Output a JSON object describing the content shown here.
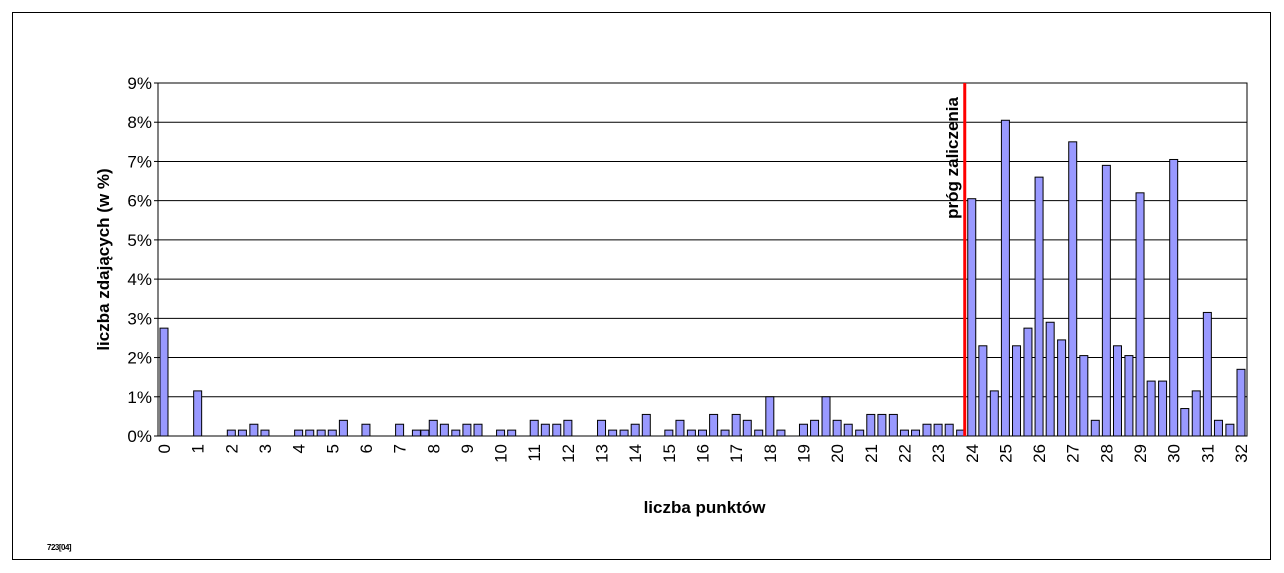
{
  "footnote": "723[04]",
  "chart_data": {
    "type": "bar",
    "xlabel": "liczba punktów",
    "ylabel": "liczba zdających (w %)",
    "ylim": [
      0,
      9
    ],
    "yticks": [
      "0%",
      "1%",
      "2%",
      "3%",
      "4%",
      "5%",
      "6%",
      "7%",
      "8%",
      "9%"
    ],
    "xlim": [
      0,
      32
    ],
    "xticks": [
      "0",
      "1",
      "2",
      "3",
      "4",
      "5",
      "6",
      "7",
      "8",
      "9",
      "10",
      "11",
      "12",
      "13",
      "14",
      "15",
      "16",
      "17",
      "18",
      "19",
      "20",
      "21",
      "22",
      "23",
      "24",
      "25",
      "26",
      "27",
      "28",
      "29",
      "30",
      "31",
      "32"
    ],
    "grid": "horizontal",
    "bar_color": "#9999ff",
    "threshold": {
      "x": 24,
      "label": "próg zaliczenia",
      "color": "#ff0000"
    },
    "points": [
      [
        0,
        2.75
      ],
      [
        1,
        1.15
      ],
      [
        2,
        0.15
      ],
      [
        2.33,
        0.15
      ],
      [
        2.67,
        0.3
      ],
      [
        3,
        0.15
      ],
      [
        4,
        0.15
      ],
      [
        4.33,
        0.15
      ],
      [
        4.67,
        0.15
      ],
      [
        5,
        0.15
      ],
      [
        5.33,
        0.4
      ],
      [
        6,
        0.3
      ],
      [
        7,
        0.3
      ],
      [
        7.5,
        0.15
      ],
      [
        7.75,
        0.15
      ],
      [
        8,
        0.4
      ],
      [
        8.33,
        0.3
      ],
      [
        8.67,
        0.15
      ],
      [
        9,
        0.3
      ],
      [
        9.33,
        0.3
      ],
      [
        10,
        0.15
      ],
      [
        10.33,
        0.15
      ],
      [
        11,
        0.4
      ],
      [
        11.33,
        0.3
      ],
      [
        11.67,
        0.3
      ],
      [
        12,
        0.4
      ],
      [
        13,
        0.4
      ],
      [
        13.33,
        0.15
      ],
      [
        13.67,
        0.15
      ],
      [
        14,
        0.3
      ],
      [
        14.33,
        0.55
      ],
      [
        15,
        0.15
      ],
      [
        15.33,
        0.4
      ],
      [
        15.67,
        0.15
      ],
      [
        16,
        0.15
      ],
      [
        16.33,
        0.55
      ],
      [
        16.67,
        0.15
      ],
      [
        17,
        0.55
      ],
      [
        17.33,
        0.4
      ],
      [
        17.67,
        0.15
      ],
      [
        18,
        1.0
      ],
      [
        18.33,
        0.15
      ],
      [
        19,
        0.3
      ],
      [
        19.33,
        0.4
      ],
      [
        19.67,
        1.0
      ],
      [
        20,
        0.4
      ],
      [
        20.33,
        0.3
      ],
      [
        20.67,
        0.15
      ],
      [
        21,
        0.55
      ],
      [
        21.33,
        0.55
      ],
      [
        21.67,
        0.55
      ],
      [
        22,
        0.15
      ],
      [
        22.33,
        0.15
      ],
      [
        22.67,
        0.3
      ],
      [
        23,
        0.3
      ],
      [
        23.33,
        0.3
      ],
      [
        23.67,
        0.15
      ],
      [
        24,
        6.05
      ],
      [
        24.33,
        2.3
      ],
      [
        24.67,
        1.15
      ],
      [
        25,
        8.05
      ],
      [
        25.33,
        2.3
      ],
      [
        25.67,
        2.75
      ],
      [
        26,
        6.6
      ],
      [
        26.33,
        2.9
      ],
      [
        26.67,
        2.45
      ],
      [
        27,
        7.5
      ],
      [
        27.33,
        2.05
      ],
      [
        27.67,
        0.4
      ],
      [
        28,
        6.9
      ],
      [
        28.33,
        2.3
      ],
      [
        28.67,
        2.05
      ],
      [
        29,
        6.2
      ],
      [
        29.33,
        1.4
      ],
      [
        29.67,
        1.4
      ],
      [
        30,
        7.05
      ],
      [
        30.33,
        0.7
      ],
      [
        30.67,
        1.15
      ],
      [
        31,
        3.15
      ],
      [
        31.33,
        0.4
      ],
      [
        31.67,
        0.3
      ],
      [
        32,
        1.7
      ]
    ]
  }
}
